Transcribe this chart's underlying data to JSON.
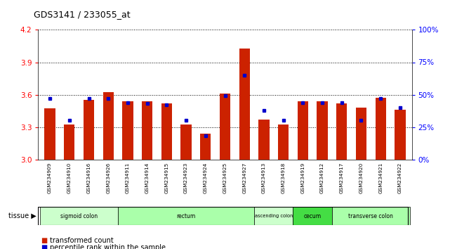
{
  "title": "GDS3141 / 233055_at",
  "samples": [
    "GSM234909",
    "GSM234910",
    "GSM234916",
    "GSM234926",
    "GSM234911",
    "GSM234914",
    "GSM234915",
    "GSM234923",
    "GSM234924",
    "GSM234925",
    "GSM234927",
    "GSM234913",
    "GSM234918",
    "GSM234919",
    "GSM234912",
    "GSM234917",
    "GSM234920",
    "GSM234921",
    "GSM234922"
  ],
  "transformed_count": [
    3.47,
    3.32,
    3.55,
    3.62,
    3.54,
    3.54,
    3.52,
    3.32,
    3.24,
    3.61,
    4.03,
    3.37,
    3.32,
    3.54,
    3.54,
    3.52,
    3.48,
    3.57,
    3.46
  ],
  "percentile": [
    47,
    30,
    47,
    47,
    44,
    43,
    42,
    30,
    18,
    49,
    65,
    38,
    30,
    44,
    44,
    44,
    30,
    47,
    40
  ],
  "tissues": [
    {
      "name": "sigmoid colon",
      "start": 0,
      "end": 4,
      "color": "#ccffcc"
    },
    {
      "name": "rectum",
      "start": 4,
      "end": 11,
      "color": "#aaffaa"
    },
    {
      "name": "ascending colon",
      "start": 11,
      "end": 13,
      "color": "#ccffcc"
    },
    {
      "name": "cecum",
      "start": 13,
      "end": 15,
      "color": "#44dd44"
    },
    {
      "name": "transverse colon",
      "start": 15,
      "end": 19,
      "color": "#aaffaa"
    }
  ],
  "y_min": 3.0,
  "y_max": 4.2,
  "y_ticks_left": [
    3.0,
    3.3,
    3.6,
    3.9,
    4.2
  ],
  "y_ticks_right": [
    0,
    25,
    50,
    75,
    100
  ],
  "bar_color": "#cc2200",
  "dot_color": "#0000cc",
  "grid_color": "#000000",
  "bg_color": "#ffffff",
  "bar_width": 0.55,
  "percentile_scale_max": 100,
  "percentile_scale_min": 0,
  "tissue_label": "tissue"
}
